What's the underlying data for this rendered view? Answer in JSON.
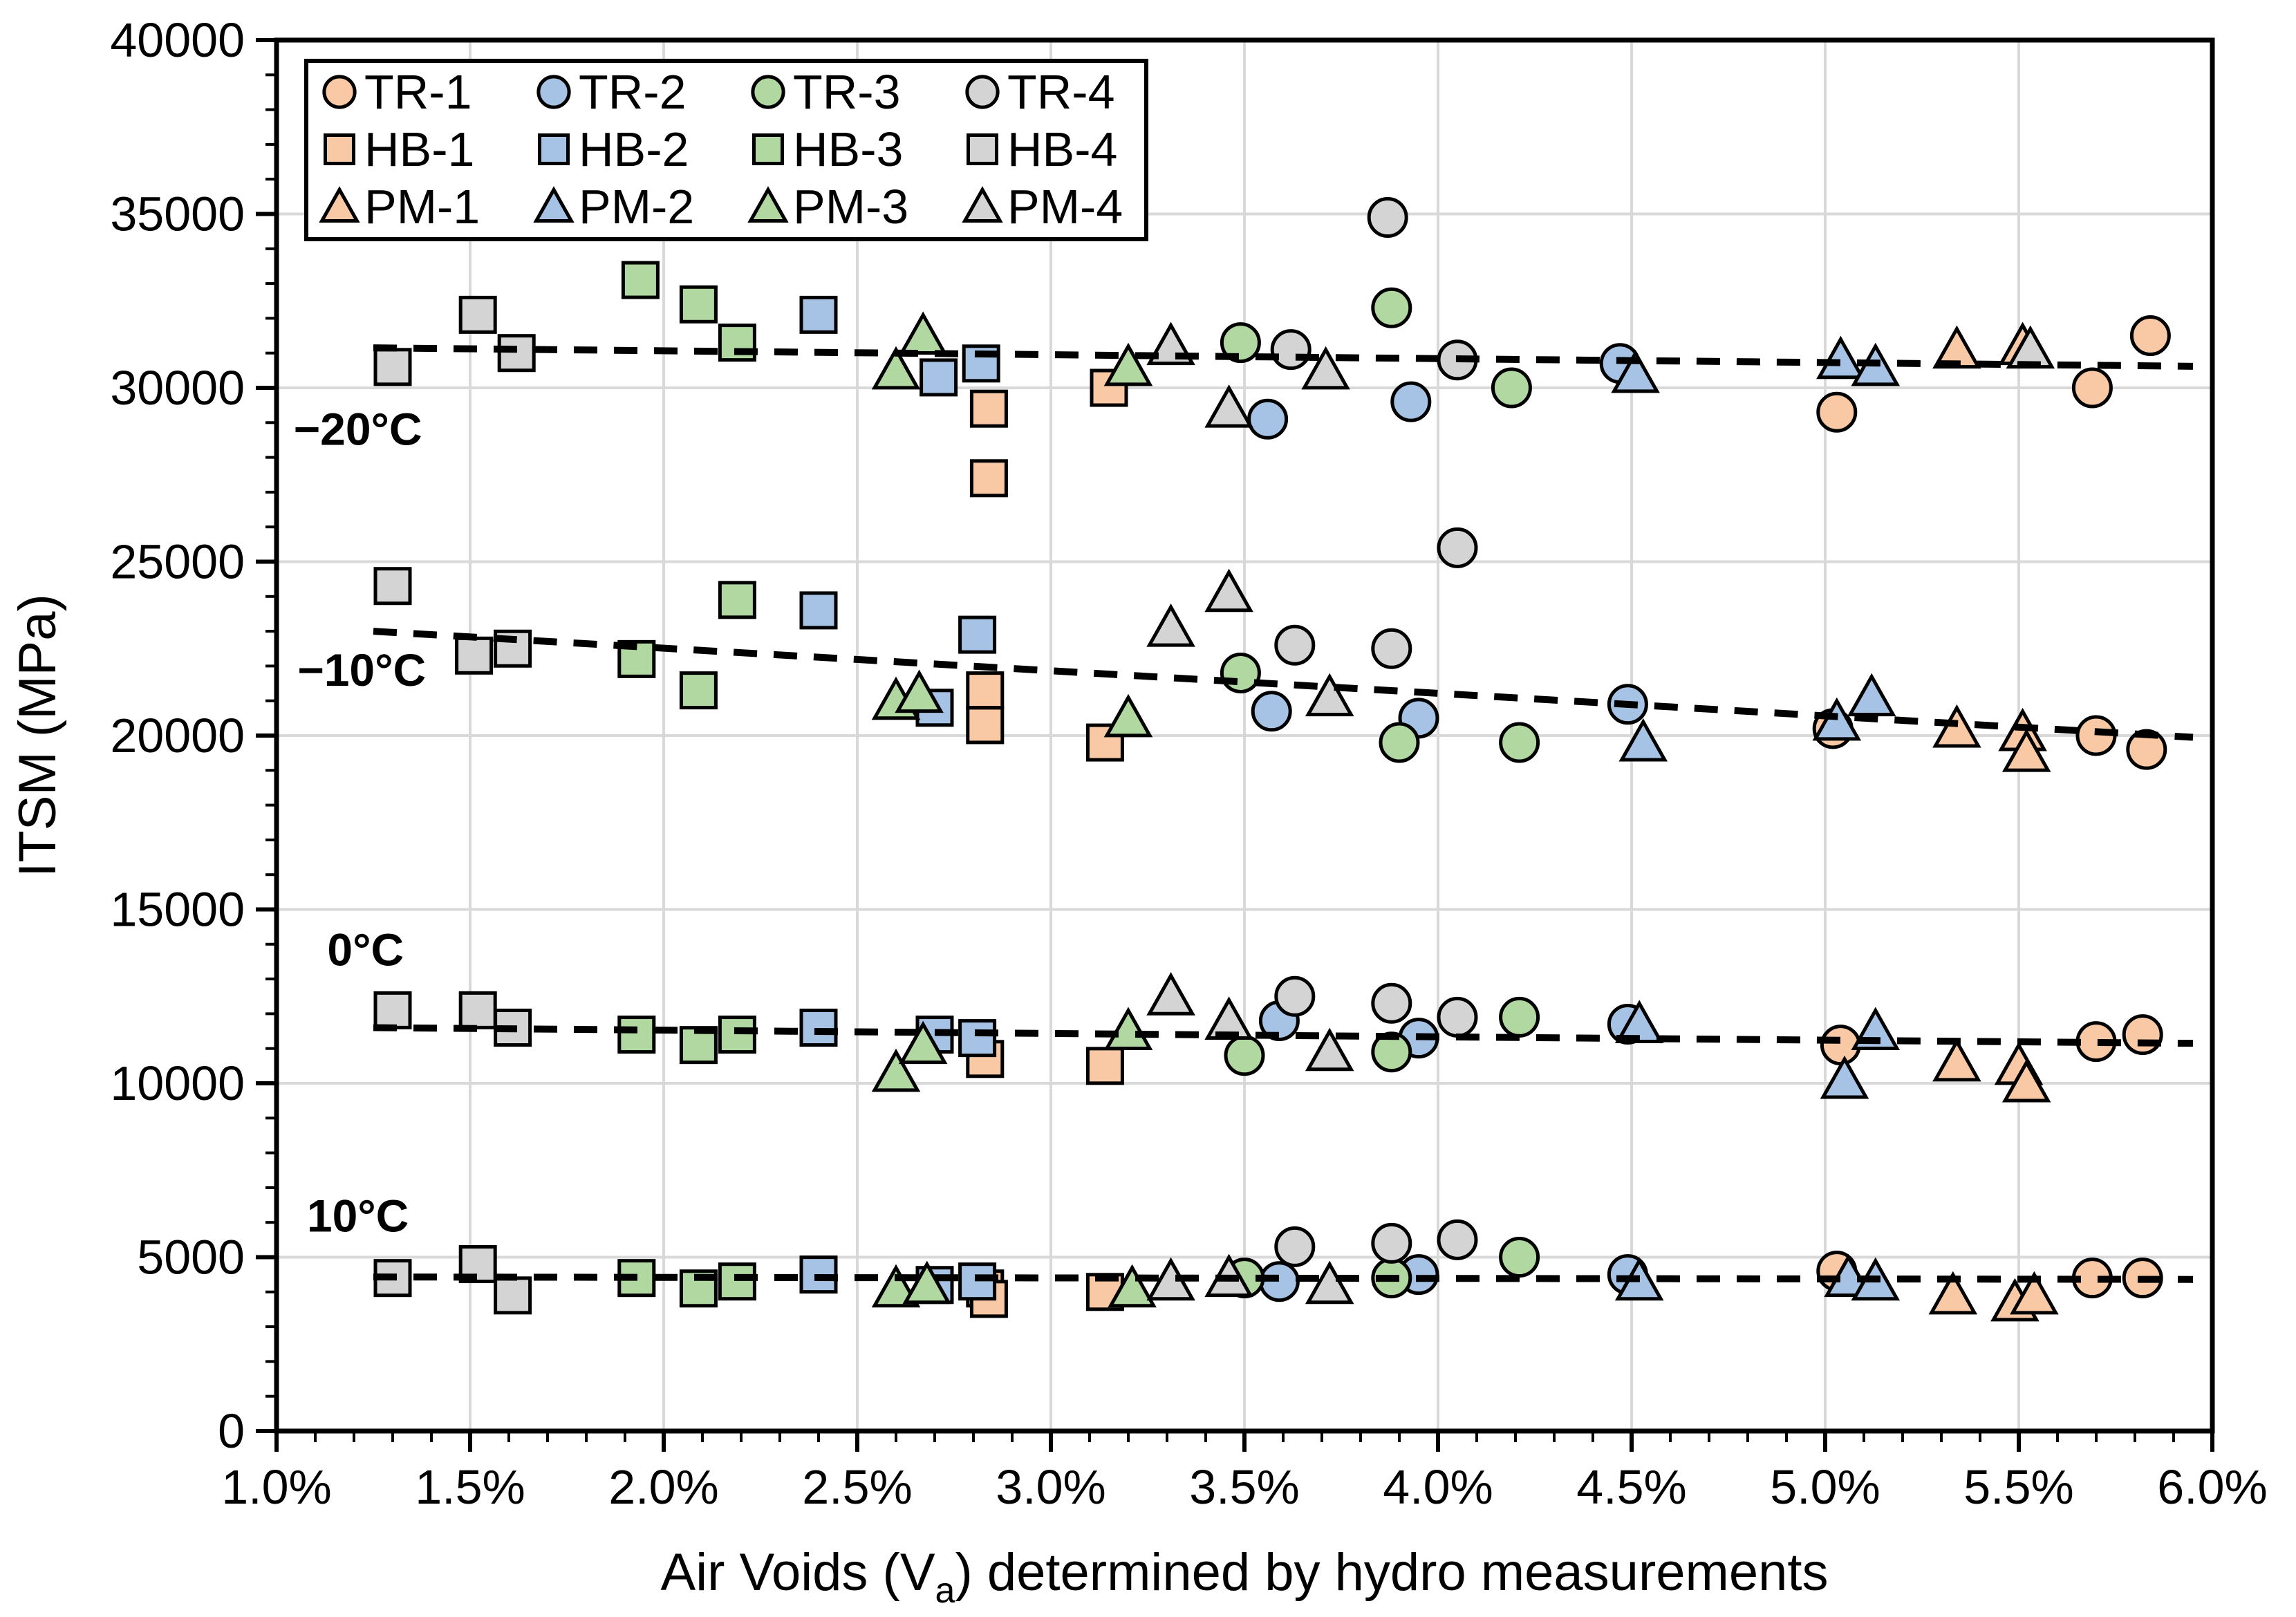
{
  "chart_data": {
    "type": "scatter",
    "title": "",
    "ylabel": "ITSM (MPa)",
    "xlabel_parts": {
      "pre": "Air Voids (V",
      "sub": "a",
      "post": ") determined by hydro measurements"
    },
    "x_axis": {
      "min": 1.0,
      "max": 6.0,
      "major": 0.5,
      "minor": 0.1,
      "tick_labels": [
        "1.0%",
        "1.5%",
        "2.0%",
        "2.5%",
        "3.0%",
        "3.5%",
        "4.0%",
        "4.5%",
        "5.0%",
        "5.5%",
        "6.0%"
      ]
    },
    "y_axis": {
      "min": 0,
      "max": 40000,
      "major": 5000,
      "minor": 1000,
      "tick_labels": [
        "0",
        "5000",
        "10000",
        "15000",
        "20000",
        "25000",
        "30000",
        "35000",
        "40000"
      ]
    },
    "grid": {
      "color": "#D9D9D9",
      "show_vertical": true,
      "show_horizontal": true
    },
    "colors": {
      "orange": "#F8C9A4",
      "blue": "#A6C3E5",
      "green": "#B2D8A2",
      "gray": "#D4D4D4",
      "marker_stroke": "#000000",
      "trend": "#000000"
    },
    "legend": {
      "rows": [
        [
          "TR-1",
          "TR-2",
          "TR-3",
          "TR-4"
        ],
        [
          "HB-1",
          "HB-2",
          "HB-3",
          "HB-4"
        ],
        [
          "PM-1",
          "PM-2",
          "PM-3",
          "PM-4"
        ]
      ]
    },
    "band_labels": [
      {
        "text": "−20°C",
        "x": 1.21,
        "y": 28800
      },
      {
        "text": "−10°C",
        "x": 1.22,
        "y": 21870
      },
      {
        "text": "0°C",
        "x": 1.23,
        "y": 13830
      },
      {
        "text": "10°C",
        "x": 1.21,
        "y": 6170
      }
    ],
    "trend_lines": [
      {
        "temp": "-20C",
        "x1": 1.25,
        "y1": 31150,
        "x2": 5.95,
        "y2": 30620
      },
      {
        "temp": "-10C",
        "x1": 1.25,
        "y1": 23000,
        "x2": 5.95,
        "y2": 19950
      },
      {
        "temp": "0C",
        "x1": 1.25,
        "y1": 11600,
        "x2": 5.95,
        "y2": 11150
      },
      {
        "temp": "10C",
        "x1": 1.25,
        "y1": 4430,
        "x2": 5.95,
        "y2": 4360
      }
    ],
    "series": [
      {
        "name": "TR-1",
        "marker": "circle",
        "color_key": "orange",
        "points": [
          [
            5.03,
            29300
          ],
          [
            5.69,
            30000
          ],
          [
            5.84,
            31500
          ],
          [
            5.02,
            20200
          ],
          [
            5.7,
            20000
          ],
          [
            5.83,
            19600
          ],
          [
            5.04,
            11100
          ],
          [
            5.7,
            11200
          ],
          [
            5.82,
            11400
          ],
          [
            5.03,
            4600
          ],
          [
            5.69,
            4400
          ],
          [
            5.82,
            4400
          ]
        ]
      },
      {
        "name": "TR-2",
        "marker": "circle",
        "color_key": "blue",
        "points": [
          [
            3.56,
            29100
          ],
          [
            3.93,
            29600
          ],
          [
            4.47,
            30700
          ],
          [
            3.57,
            20700
          ],
          [
            3.95,
            20500
          ],
          [
            4.49,
            20900
          ],
          [
            3.59,
            11800
          ],
          [
            3.95,
            11300
          ],
          [
            4.49,
            11700
          ],
          [
            3.59,
            4300
          ],
          [
            3.95,
            4500
          ],
          [
            4.49,
            4500
          ]
        ]
      },
      {
        "name": "TR-3",
        "marker": "circle",
        "color_key": "green",
        "points": [
          [
            3.49,
            31300
          ],
          [
            3.88,
            32300
          ],
          [
            4.19,
            30000
          ],
          [
            3.49,
            21800
          ],
          [
            3.9,
            19800
          ],
          [
            4.21,
            19800
          ],
          [
            3.5,
            10800
          ],
          [
            3.88,
            10900
          ],
          [
            4.21,
            11900
          ],
          [
            3.5,
            4400
          ],
          [
            3.88,
            4400
          ],
          [
            4.21,
            5000
          ]
        ]
      },
      {
        "name": "TR-4",
        "marker": "circle",
        "color_key": "gray",
        "points": [
          [
            3.62,
            31100
          ],
          [
            3.87,
            34900
          ],
          [
            4.05,
            30800
          ],
          [
            4.05,
            25400
          ],
          [
            3.63,
            22600
          ],
          [
            3.88,
            22500
          ],
          [
            3.63,
            12500
          ],
          [
            3.88,
            12300
          ],
          [
            4.05,
            11900
          ],
          [
            3.63,
            5300
          ],
          [
            3.88,
            5400
          ],
          [
            4.05,
            5500
          ]
        ]
      },
      {
        "name": "HB-1",
        "marker": "square",
        "color_key": "orange",
        "points": [
          [
            2.84,
            29400
          ],
          [
            2.84,
            27400
          ],
          [
            3.15,
            30000
          ],
          [
            2.83,
            21300
          ],
          [
            2.83,
            20300
          ],
          [
            3.14,
            19800
          ],
          [
            2.83,
            10700
          ],
          [
            3.14,
            10500
          ],
          [
            2.83,
            4100
          ],
          [
            2.84,
            3800
          ],
          [
            3.14,
            4000
          ]
        ]
      },
      {
        "name": "HB-2",
        "marker": "square",
        "color_key": "blue",
        "points": [
          [
            2.4,
            32100
          ],
          [
            2.71,
            30300
          ],
          [
            2.82,
            30700
          ],
          [
            2.4,
            23600
          ],
          [
            2.7,
            20800
          ],
          [
            2.81,
            22900
          ],
          [
            2.4,
            11600
          ],
          [
            2.7,
            11400
          ],
          [
            2.81,
            11300
          ],
          [
            2.4,
            4500
          ],
          [
            2.7,
            4200
          ],
          [
            2.81,
            4300
          ]
        ]
      },
      {
        "name": "HB-3",
        "marker": "square",
        "color_key": "green",
        "points": [
          [
            1.94,
            33100
          ],
          [
            2.09,
            32400
          ],
          [
            2.19,
            31300
          ],
          [
            1.93,
            22200
          ],
          [
            2.09,
            21300
          ],
          [
            2.19,
            23900
          ],
          [
            1.93,
            11400
          ],
          [
            2.09,
            11100
          ],
          [
            2.19,
            11400
          ],
          [
            1.93,
            4400
          ],
          [
            2.09,
            4100
          ],
          [
            2.19,
            4300
          ]
        ]
      },
      {
        "name": "HB-4",
        "marker": "square",
        "color_key": "gray",
        "points": [
          [
            1.3,
            30600
          ],
          [
            1.52,
            32100
          ],
          [
            1.62,
            31000
          ],
          [
            1.3,
            24300
          ],
          [
            1.51,
            22300
          ],
          [
            1.61,
            22500
          ],
          [
            1.3,
            12100
          ],
          [
            1.52,
            12100
          ],
          [
            1.61,
            11600
          ],
          [
            1.3,
            4400
          ],
          [
            1.52,
            4800
          ],
          [
            1.61,
            3900
          ]
        ]
      },
      {
        "name": "PM-1",
        "marker": "triangle",
        "color_key": "orange",
        "points": [
          [
            5.34,
            31100
          ],
          [
            5.51,
            31200
          ],
          [
            5.34,
            20200
          ],
          [
            5.51,
            20100
          ],
          [
            5.52,
            19500
          ],
          [
            5.34,
            10600
          ],
          [
            5.5,
            10500
          ],
          [
            5.52,
            10000
          ],
          [
            5.33,
            3900
          ],
          [
            5.49,
            3700
          ],
          [
            5.54,
            3900
          ]
        ]
      },
      {
        "name": "PM-2",
        "marker": "triangle",
        "color_key": "blue",
        "points": [
          [
            4.51,
            30400
          ],
          [
            5.04,
            30800
          ],
          [
            5.13,
            30600
          ],
          [
            4.53,
            19800
          ],
          [
            5.03,
            20400
          ],
          [
            5.12,
            21100
          ],
          [
            4.52,
            11700
          ],
          [
            5.05,
            10100
          ],
          [
            5.13,
            11500
          ],
          [
            4.52,
            4300
          ],
          [
            5.06,
            4400
          ],
          [
            5.13,
            4300
          ]
        ]
      },
      {
        "name": "PM-3",
        "marker": "triangle",
        "color_key": "green",
        "points": [
          [
            2.6,
            30500
          ],
          [
            2.67,
            31500
          ],
          [
            3.2,
            30600
          ],
          [
            2.6,
            21000
          ],
          [
            2.66,
            21200
          ],
          [
            3.2,
            20500
          ],
          [
            2.6,
            10300
          ],
          [
            2.67,
            11100
          ],
          [
            3.2,
            11500
          ],
          [
            2.6,
            4100
          ],
          [
            2.68,
            4200
          ],
          [
            3.21,
            4100
          ]
        ]
      },
      {
        "name": "PM-4",
        "marker": "triangle",
        "color_key": "gray",
        "points": [
          [
            3.31,
            31200
          ],
          [
            3.46,
            29400
          ],
          [
            3.71,
            30500
          ],
          [
            5.53,
            31100
          ],
          [
            3.31,
            23100
          ],
          [
            3.46,
            24100
          ],
          [
            3.72,
            21100
          ],
          [
            3.31,
            12500
          ],
          [
            3.46,
            11800
          ],
          [
            3.72,
            10900
          ],
          [
            3.31,
            4300
          ],
          [
            3.46,
            4400
          ],
          [
            3.72,
            4200
          ]
        ]
      }
    ]
  }
}
